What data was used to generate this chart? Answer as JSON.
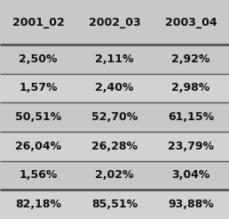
{
  "columns": [
    "2001_02",
    "2002_03",
    "2003_04"
  ],
  "rows": [
    [
      "2,50%",
      "2,11%",
      "2,92%"
    ],
    [
      "1,57%",
      "2,40%",
      "2,98%"
    ],
    [
      "50,51%",
      "52,70%",
      "61,15%"
    ],
    [
      "26,04%",
      "26,28%",
      "23,79%"
    ],
    [
      "1,56%",
      "2,02%",
      "3,04%"
    ],
    [
      "82,18%",
      "85,51%",
      "93,88%"
    ]
  ],
  "bg_color": "#c8c8c8",
  "line_color": "#555555",
  "text_color": "#111111",
  "header_fontsize": 9,
  "cell_fontsize": 9,
  "row_colors": [
    "#c8c8c8",
    "#d2d2d2",
    "#c8c8c8",
    "#d2d2d2",
    "#c8c8c8",
    "#d2d2d2"
  ],
  "thick_lines": [
    1,
    5
  ],
  "thin_lines": [
    2,
    3,
    4
  ]
}
